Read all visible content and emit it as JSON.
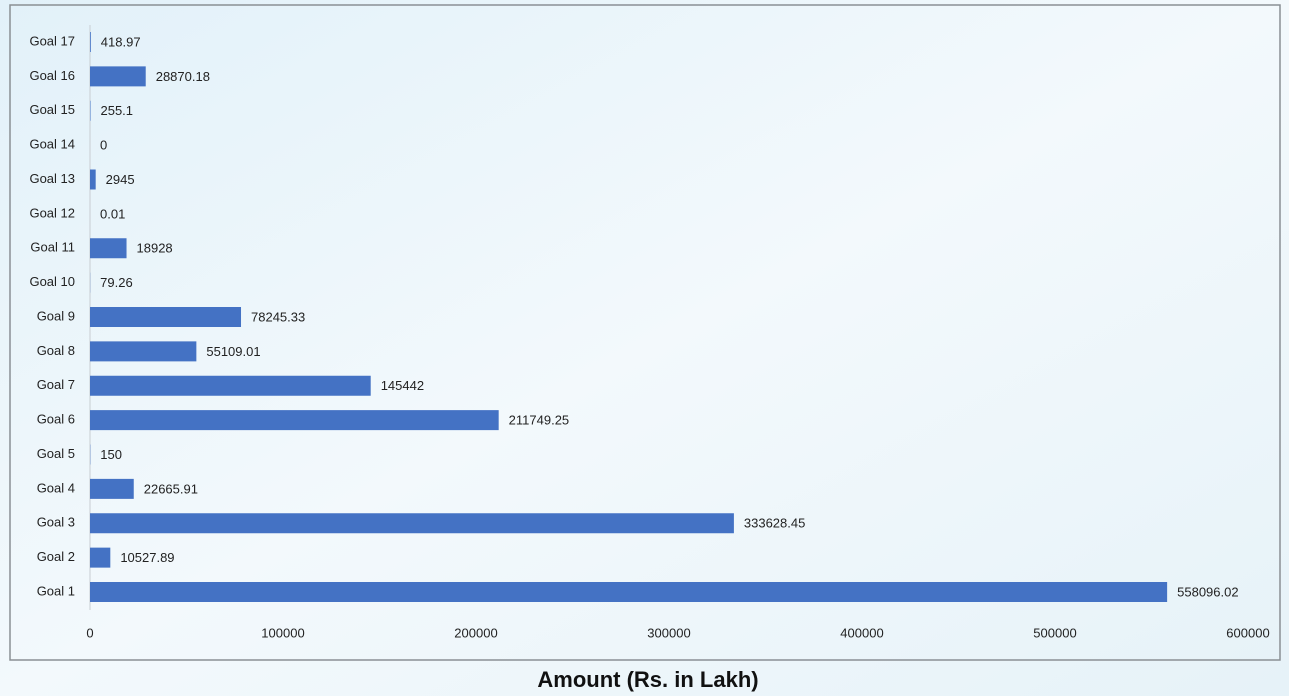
{
  "chart_data": {
    "type": "bar",
    "orientation": "horizontal",
    "x_label": "Amount (Rs. in Lakh)",
    "categories": [
      "Goal 1",
      "Goal 2",
      "Goal 3",
      "Goal 4",
      "Goal 5",
      "Goal 6",
      "Goal 7",
      "Goal 8",
      "Goal 9",
      "Goal 10",
      "Goal 11",
      "Goal 12",
      "Goal 13",
      "Goal 14",
      "Goal 15",
      "Goal 16",
      "Goal 17"
    ],
    "values": [
      558096.02,
      10527.89,
      333628.45,
      22665.91,
      150,
      211749.25,
      145442,
      55109.01,
      78245.33,
      79.26,
      18928,
      0.01,
      2945,
      0,
      255.1,
      28870.18,
      418.97
    ],
    "color": "#4472c4",
    "xlim": [
      0,
      600000
    ],
    "xticks": [
      0,
      100000,
      200000,
      300000,
      400000,
      500000,
      600000
    ],
    "grid": false
  }
}
